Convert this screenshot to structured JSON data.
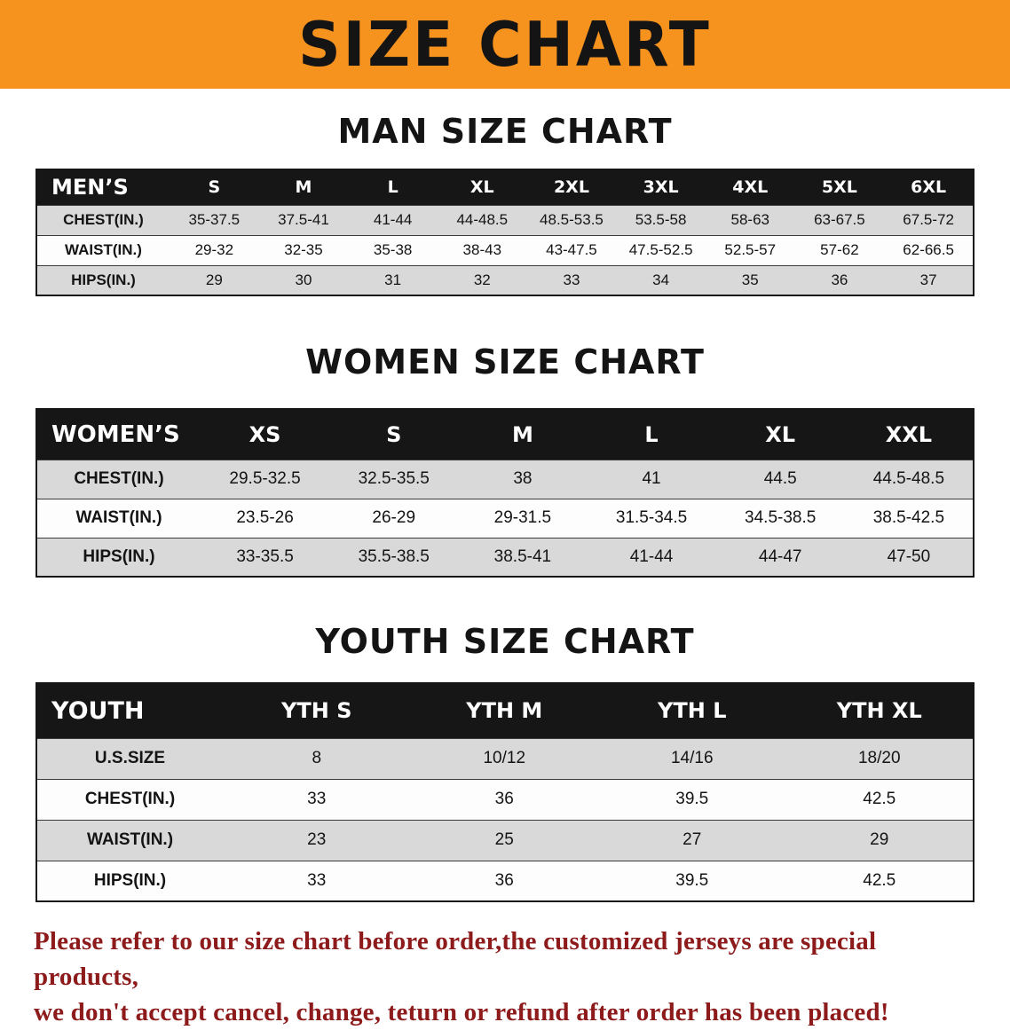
{
  "banner": {
    "title": "SIZE CHART",
    "bg_color": "#f6921e"
  },
  "sections": [
    {
      "title": "MAN SIZE CHART",
      "table": {
        "header": [
          "MEN’S",
          "S",
          "M",
          "L",
          "XL",
          "2XL",
          "3XL",
          "4XL",
          "5XL",
          "6XL"
        ],
        "rows": [
          [
            "CHEST(IN.)",
            "35-37.5",
            "37.5-41",
            "41-44",
            "44-48.5",
            "48.5-53.5",
            "53.5-58",
            "58-63",
            "63-67.5",
            "67.5-72"
          ],
          [
            "WAIST(IN.)",
            "29-32",
            "32-35",
            "35-38",
            "38-43",
            "43-47.5",
            "47.5-52.5",
            "52.5-57",
            "57-62",
            "62-66.5"
          ],
          [
            "HIPS(IN.)",
            "29",
            "30",
            "31",
            "32",
            "33",
            "34",
            "35",
            "36",
            "37"
          ]
        ]
      }
    },
    {
      "title": "WOMEN SIZE CHART",
      "table": {
        "header": [
          "WOMEN’S",
          "XS",
          "S",
          "M",
          "L",
          "XL",
          "XXL"
        ],
        "rows": [
          [
            "CHEST(IN.)",
            "29.5-32.5",
            "32.5-35.5",
            "38",
            "41",
            "44.5",
            "44.5-48.5"
          ],
          [
            "WAIST(IN.)",
            "23.5-26",
            "26-29",
            "29-31.5",
            "31.5-34.5",
            "34.5-38.5",
            "38.5-42.5"
          ],
          [
            "HIPS(IN.)",
            "33-35.5",
            "35.5-38.5",
            "38.5-41",
            "41-44",
            "44-47",
            "47-50"
          ]
        ]
      }
    },
    {
      "title": "YOUTH SIZE CHART",
      "table": {
        "header": [
          "YOUTH",
          "YTH S",
          "YTH M",
          "YTH L",
          "YTH XL"
        ],
        "rows": [
          [
            "U.S.SIZE",
            "8",
            "10/12",
            "14/16",
            "18/20"
          ],
          [
            "CHEST(IN.)",
            "33",
            "36",
            "39.5",
            "42.5"
          ],
          [
            "WAIST(IN.)",
            "23",
            "25",
            "27",
            "29"
          ],
          [
            "HIPS(IN.)",
            "33",
            "36",
            "39.5",
            "42.5"
          ]
        ]
      }
    }
  ],
  "footer": {
    "line1": "Please refer to our size chart before order,the customized jerseys are special products,",
    "line2": "we don't accept cancel, change, teturn or refund after order has been placed!",
    "text_color": "#8e1b1b"
  }
}
